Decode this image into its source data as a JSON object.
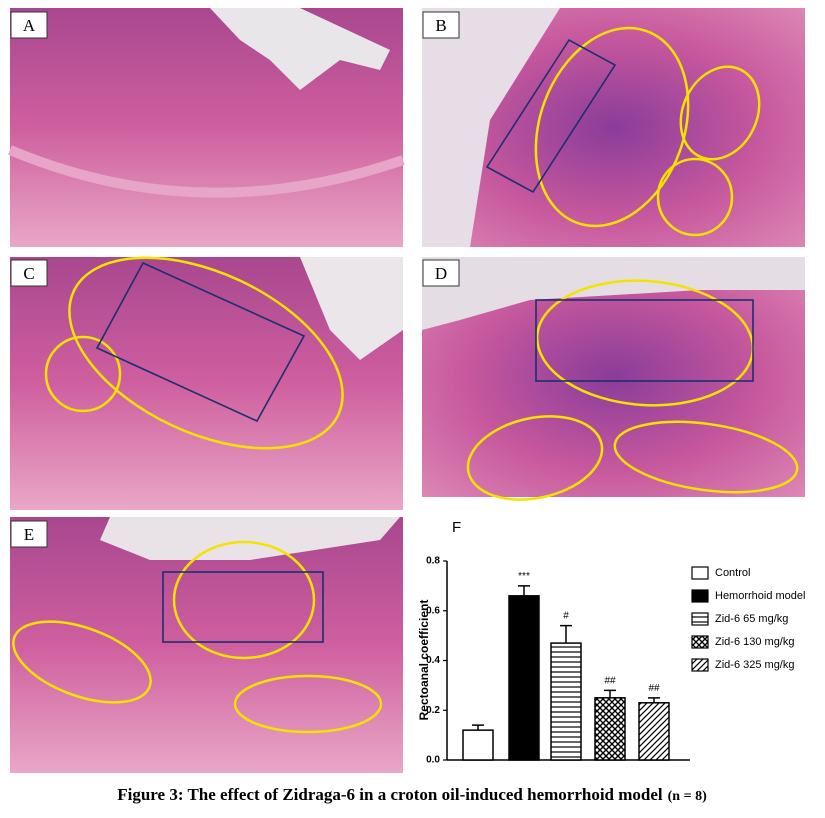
{
  "panels": [
    {
      "label": "A"
    },
    {
      "label": "B"
    },
    {
      "label": "C"
    },
    {
      "label": "D"
    },
    {
      "label": "E"
    }
  ],
  "chart_data": {
    "type": "bar",
    "panel_label": "F",
    "ylabel": "Rectoanal coefficient",
    "ylim": [
      0,
      0.8
    ],
    "yticks": [
      {
        "value": 0,
        "label": "0.0"
      },
      0.2,
      0.4,
      0.6,
      0.8
    ],
    "series": [
      {
        "name": "Control",
        "color": "#ffffff",
        "pattern": "solid",
        "values": [
          0.12
        ],
        "errors": [
          0.02
        ],
        "annotations": [
          null
        ]
      },
      {
        "name": "Hemorrhoid model",
        "color": "#000000",
        "pattern": "solid",
        "values": [
          0.66
        ],
        "errors": [
          0.04
        ],
        "annotations": [
          "***"
        ]
      },
      {
        "name": "Zid-6 65 mg/kg",
        "color": "#000000",
        "pattern": "horizontal",
        "values": [
          0.47
        ],
        "errors": [
          0.07
        ],
        "annotations": [
          "#"
        ]
      },
      {
        "name": "Zid-6 130 mg/kg",
        "color": "#000000",
        "pattern": "crosshatch",
        "values": [
          0.25
        ],
        "errors": [
          0.03
        ],
        "annotations": [
          "##"
        ]
      },
      {
        "name": "Zid-6 325 mg/kg",
        "color": "#000000",
        "pattern": "diagonal",
        "values": [
          0.23
        ],
        "errors": [
          0.02
        ],
        "annotations": [
          "##"
        ]
      }
    ]
  },
  "caption": {
    "text": "Figure 3: The effect of Zidraga-6 in a croton oil-induced hemorrhoid model",
    "note": "(n = 8)"
  }
}
